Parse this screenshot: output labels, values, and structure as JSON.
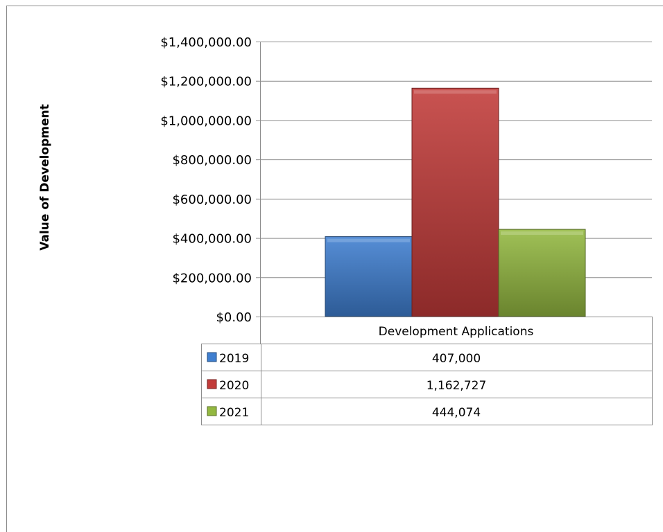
{
  "chart_data": {
    "type": "bar",
    "categories": [
      "Development Applications"
    ],
    "series": [
      {
        "name": "2019",
        "values": [
          407000
        ],
        "value_label": "407,000",
        "color": "#3f7fd0"
      },
      {
        "name": "2020",
        "values": [
          1162727
        ],
        "value_label": "1,162,727",
        "color": "#c23b39"
      },
      {
        "name": "2021",
        "values": [
          444074
        ],
        "value_label": "444,074",
        "color": "#93b840"
      }
    ],
    "title": "",
    "xlabel": "",
    "ylabel": "Value of Development",
    "ylim": [
      0,
      1400000
    ],
    "yticks": [
      0,
      200000,
      400000,
      600000,
      800000,
      1000000,
      1200000,
      1400000
    ],
    "ytick_labels": [
      "$0.00",
      "$200,000.00",
      "$400,000.00",
      "$600,000.00",
      "$800,000.00",
      "$1,000,000.00",
      "$1,200,000.00",
      "$1,400,000.00"
    ],
    "grid": true,
    "legend": "data-table-below"
  }
}
